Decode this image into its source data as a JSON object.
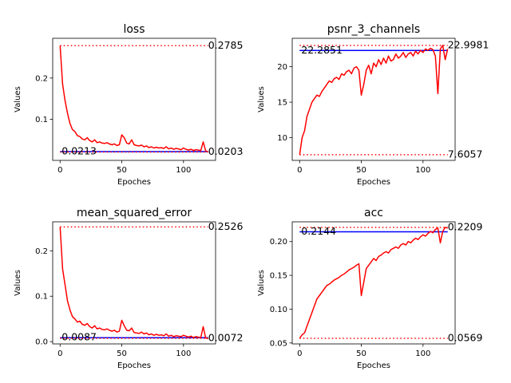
{
  "chart_data": [
    {
      "type": "line",
      "title": "loss",
      "xlabel": "Epoches",
      "ylabel": "Values",
      "xlim": [
        -6,
        126
      ],
      "ylim": [
        0.0,
        0.2965
      ],
      "xticks": [
        0,
        50,
        100
      ],
      "yticks": [
        0.1,
        0.2
      ],
      "ytick_labels": [
        "0.1",
        "0.2"
      ],
      "series": [
        {
          "color": "#ff0000",
          "x": [
            0,
            2,
            4,
            6,
            8,
            10,
            12,
            14,
            16,
            18,
            20,
            22,
            24,
            26,
            28,
            30,
            32,
            34,
            36,
            38,
            40,
            42,
            44,
            46,
            48,
            50,
            52,
            54,
            56,
            58,
            60,
            62,
            64,
            66,
            68,
            70,
            72,
            74,
            76,
            78,
            80,
            82,
            84,
            86,
            88,
            90,
            92,
            94,
            96,
            98,
            100,
            102,
            104,
            106,
            108,
            110,
            112,
            114,
            116,
            118,
            120
          ],
          "y": [
            0.2785,
            0.185,
            0.145,
            0.115,
            0.09,
            0.075,
            0.07,
            0.06,
            0.058,
            0.052,
            0.05,
            0.055,
            0.048,
            0.045,
            0.05,
            0.043,
            0.045,
            0.042,
            0.041,
            0.043,
            0.04,
            0.038,
            0.04,
            0.036,
            0.038,
            0.062,
            0.055,
            0.042,
            0.04,
            0.05,
            0.038,
            0.036,
            0.035,
            0.037,
            0.033,
            0.035,
            0.031,
            0.033,
            0.03,
            0.032,
            0.03,
            0.031,
            0.029,
            0.033,
            0.028,
            0.03,
            0.027,
            0.029,
            0.028,
            0.026,
            0.03,
            0.027,
            0.025,
            0.027,
            0.024,
            0.026,
            0.025,
            0.024,
            0.045,
            0.023,
            0.0203
          ]
        }
      ],
      "reference_lines": [
        {
          "value": 0.2785,
          "style": "dotted",
          "color": "#ff0000",
          "label": "0.2785",
          "label_side": "right"
        },
        {
          "value": 0.0213,
          "style": "solid",
          "color": "#0000ff",
          "label": "0.0213",
          "label_side": "left"
        },
        {
          "value": 0.0203,
          "style": "dotted",
          "color": "#ff0000",
          "label": "0.0203",
          "label_side": "right"
        }
      ]
    },
    {
      "type": "line",
      "title": "psnr_3_channels",
      "xlabel": "Epoches",
      "ylabel": "Values",
      "xlim": [
        -6,
        126
      ],
      "ylim": [
        6.8,
        24.0
      ],
      "xticks": [
        0,
        50,
        100
      ],
      "yticks": [
        10,
        15,
        20
      ],
      "ytick_labels": [
        "10",
        "15",
        "20"
      ],
      "series": [
        {
          "color": "#ff0000",
          "x": [
            0,
            2,
            4,
            6,
            8,
            10,
            12,
            14,
            16,
            18,
            20,
            22,
            24,
            26,
            28,
            30,
            32,
            34,
            36,
            38,
            40,
            42,
            44,
            46,
            48,
            50,
            52,
            54,
            56,
            58,
            60,
            62,
            64,
            66,
            68,
            70,
            72,
            74,
            76,
            78,
            80,
            82,
            84,
            86,
            88,
            90,
            92,
            94,
            96,
            98,
            100,
            102,
            104,
            106,
            108,
            110,
            112,
            114,
            116,
            118,
            120
          ],
          "y": [
            7.6057,
            10.0,
            11.0,
            13.0,
            14.0,
            15.0,
            15.5,
            16.0,
            15.8,
            16.5,
            17.0,
            17.5,
            18.0,
            17.8,
            18.3,
            18.5,
            18.2,
            19.0,
            18.8,
            19.3,
            19.5,
            19.0,
            19.8,
            20.0,
            19.5,
            16.0,
            17.5,
            19.5,
            20.2,
            19.0,
            20.5,
            20.0,
            21.0,
            20.3,
            21.2,
            20.5,
            21.5,
            20.8,
            21.0,
            21.8,
            21.2,
            21.5,
            22.0,
            21.3,
            21.8,
            22.0,
            21.5,
            22.2,
            21.8,
            22.3,
            22.0,
            22.5,
            22.3,
            22.6,
            22.4,
            21.5,
            16.2,
            22.5,
            22.9981,
            21.0,
            22.5
          ]
        }
      ],
      "reference_lines": [
        {
          "value": 22.9981,
          "style": "dotted",
          "color": "#ff0000",
          "label": "22.9981",
          "label_side": "right"
        },
        {
          "value": 22.2851,
          "style": "solid",
          "color": "#0000ff",
          "label": "22.2851",
          "label_side": "left"
        },
        {
          "value": 7.6057,
          "style": "dotted",
          "color": "#ff0000",
          "label": "7.6057",
          "label_side": "right"
        }
      ]
    },
    {
      "type": "line",
      "title": "mean_squared_error",
      "xlabel": "Epoches",
      "ylabel": "Values",
      "xlim": [
        -6,
        126
      ],
      "ylim": [
        -0.005,
        0.2638
      ],
      "xticks": [
        0,
        50,
        100
      ],
      "yticks": [
        0.0,
        0.1,
        0.2
      ],
      "ytick_labels": [
        "0.0",
        "0.1",
        "0.2"
      ],
      "series": [
        {
          "color": "#ff0000",
          "x": [
            0,
            2,
            4,
            6,
            8,
            10,
            12,
            14,
            16,
            18,
            20,
            22,
            24,
            26,
            28,
            30,
            32,
            34,
            36,
            38,
            40,
            42,
            44,
            46,
            48,
            50,
            52,
            54,
            56,
            58,
            60,
            62,
            64,
            66,
            68,
            70,
            72,
            74,
            76,
            78,
            80,
            82,
            84,
            86,
            88,
            90,
            92,
            94,
            96,
            98,
            100,
            102,
            104,
            106,
            108,
            110,
            112,
            114,
            116,
            118,
            120
          ],
          "y": [
            0.2526,
            0.16,
            0.125,
            0.09,
            0.07,
            0.055,
            0.05,
            0.043,
            0.045,
            0.038,
            0.036,
            0.04,
            0.033,
            0.03,
            0.035,
            0.028,
            0.03,
            0.027,
            0.026,
            0.028,
            0.025,
            0.023,
            0.025,
            0.021,
            0.023,
            0.047,
            0.035,
            0.025,
            0.024,
            0.03,
            0.02,
            0.019,
            0.018,
            0.021,
            0.017,
            0.019,
            0.015,
            0.017,
            0.014,
            0.016,
            0.014,
            0.015,
            0.013,
            0.017,
            0.012,
            0.014,
            0.011,
            0.013,
            0.012,
            0.011,
            0.014,
            0.012,
            0.01,
            0.012,
            0.009,
            0.011,
            0.01,
            0.009,
            0.033,
            0.008,
            0.0072
          ]
        }
      ],
      "reference_lines": [
        {
          "value": 0.2526,
          "style": "dotted",
          "color": "#ff0000",
          "label": "0.2526",
          "label_side": "right"
        },
        {
          "value": 0.0087,
          "style": "solid",
          "color": "#0000ff",
          "label": "0.0087",
          "label_side": "left"
        },
        {
          "value": 0.0072,
          "style": "dotted",
          "color": "#ff0000",
          "label": "0.0072",
          "label_side": "right"
        }
      ]
    },
    {
      "type": "line",
      "title": "acc",
      "xlabel": "Epoches",
      "ylabel": "Values",
      "xlim": [
        -6,
        126
      ],
      "ylim": [
        0.0486,
        0.2292
      ],
      "xticks": [
        0,
        50,
        100
      ],
      "yticks": [
        0.05,
        0.1,
        0.15,
        0.2
      ],
      "ytick_labels": [
        "0.05",
        "0.10",
        "0.15",
        "0.20"
      ],
      "series": [
        {
          "color": "#ff0000",
          "x": [
            0,
            2,
            4,
            6,
            8,
            10,
            12,
            14,
            16,
            18,
            20,
            22,
            24,
            26,
            28,
            30,
            32,
            34,
            36,
            38,
            40,
            42,
            44,
            46,
            48,
            50,
            52,
            54,
            56,
            58,
            60,
            62,
            64,
            66,
            68,
            70,
            72,
            74,
            76,
            78,
            80,
            82,
            84,
            86,
            88,
            90,
            92,
            94,
            96,
            98,
            100,
            102,
            104,
            106,
            108,
            110,
            112,
            114,
            116,
            118,
            120
          ],
          "y": [
            0.0569,
            0.062,
            0.065,
            0.075,
            0.085,
            0.095,
            0.105,
            0.115,
            0.12,
            0.125,
            0.13,
            0.135,
            0.137,
            0.14,
            0.143,
            0.145,
            0.147,
            0.15,
            0.152,
            0.155,
            0.158,
            0.16,
            0.162,
            0.165,
            0.167,
            0.12,
            0.14,
            0.16,
            0.165,
            0.17,
            0.175,
            0.172,
            0.178,
            0.18,
            0.183,
            0.185,
            0.183,
            0.188,
            0.19,
            0.192,
            0.19,
            0.195,
            0.197,
            0.195,
            0.2,
            0.198,
            0.202,
            0.205,
            0.203,
            0.207,
            0.21,
            0.208,
            0.212,
            0.215,
            0.213,
            0.218,
            0.22,
            0.198,
            0.215,
            0.2209,
            0.22
          ]
        }
      ],
      "reference_lines": [
        {
          "value": 0.2209,
          "style": "dotted",
          "color": "#ff0000",
          "label": "0.2209",
          "label_side": "right"
        },
        {
          "value": 0.2144,
          "style": "solid",
          "color": "#0000ff",
          "label": "0.2144",
          "label_side": "left"
        },
        {
          "value": 0.0569,
          "style": "dotted",
          "color": "#ff0000",
          "label": "0.0569",
          "label_side": "right"
        }
      ]
    }
  ]
}
